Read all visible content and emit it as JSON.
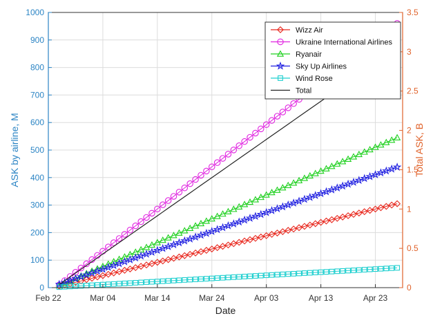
{
  "chart_data": {
    "type": "line",
    "xlabel": "Date",
    "ylabel_left": "ASK by airline, M",
    "ylabel_right": "Total ASK, B",
    "x_start": "2022-02-24",
    "x_end": "2022-04-27",
    "ylim_left": [
      0,
      1000
    ],
    "yticks_left": [
      "0",
      "100",
      "200",
      "300",
      "400",
      "500",
      "600",
      "700",
      "800",
      "900",
      "1000"
    ],
    "ylim_right": [
      0,
      3.5
    ],
    "yticks_right": [
      "0",
      "0.5",
      "1",
      "1.5",
      "2",
      "2.5",
      "3",
      "3.5"
    ],
    "xticks": [
      {
        "date": "2022-02-22",
        "label": "Feb 22"
      },
      {
        "date": "2022-03-04",
        "label": "Mar 04"
      },
      {
        "date": "2022-03-14",
        "label": "Mar 14"
      },
      {
        "date": "2022-03-24",
        "label": "Mar 24"
      },
      {
        "date": "2022-04-03",
        "label": "Apr 03"
      },
      {
        "date": "2022-04-13",
        "label": "Apr 13"
      },
      {
        "date": "2022-04-23",
        "label": "Apr 23"
      }
    ],
    "grid": true,
    "legend_position": "top-right",
    "left_axis_color": "#2b84c4",
    "right_axis_color": "#e0622a",
    "series": [
      {
        "name": "Wizz Air",
        "axis": "left",
        "marker": "diamond",
        "color": "#e8281e",
        "points": [
          {
            "x": "2022-02-24",
            "y": 5
          },
          {
            "x": "2022-04-27",
            "y": 305
          }
        ]
      },
      {
        "name": "Ukraine International Airlines",
        "axis": "left",
        "marker": "circle",
        "color": "#e023e0",
        "points": [
          {
            "x": "2022-02-24",
            "y": 10
          },
          {
            "x": "2022-04-27",
            "y": 960
          }
        ]
      },
      {
        "name": "Ryanair",
        "axis": "left",
        "marker": "triangle",
        "color": "#1ed01e",
        "points": [
          {
            "x": "2022-02-24",
            "y": 8
          },
          {
            "x": "2022-04-27",
            "y": 545
          }
        ]
      },
      {
        "name": "Sky Up Airlines",
        "axis": "left",
        "marker": "star",
        "color": "#1c1ce0",
        "points": [
          {
            "x": "2022-02-24",
            "y": 12
          },
          {
            "x": "2022-04-27",
            "y": 438
          }
        ]
      },
      {
        "name": "Wind Rose",
        "axis": "left",
        "marker": "square",
        "color": "#1ecfcf",
        "points": [
          {
            "x": "2022-02-24",
            "y": 2
          },
          {
            "x": "2022-04-27",
            "y": 72
          }
        ]
      },
      {
        "name": "Total",
        "axis": "right",
        "marker": "none",
        "color": "#222222",
        "points": [
          {
            "x": "2022-02-24",
            "y": 0.04
          },
          {
            "x": "2022-04-27",
            "y": 3.05
          }
        ]
      }
    ]
  }
}
